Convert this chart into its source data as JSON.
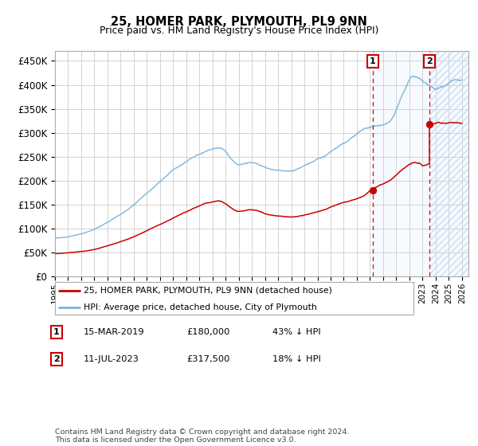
{
  "title": "25, HOMER PARK, PLYMOUTH, PL9 9NN",
  "subtitle": "Price paid vs. HM Land Registry's House Price Index (HPI)",
  "ylabel_ticks": [
    "£0",
    "£50K",
    "£100K",
    "£150K",
    "£200K",
    "£250K",
    "£300K",
    "£350K",
    "£400K",
    "£450K"
  ],
  "ytick_values": [
    0,
    50000,
    100000,
    150000,
    200000,
    250000,
    300000,
    350000,
    400000,
    450000
  ],
  "ylim": [
    0,
    470000
  ],
  "xlim_start": 1995.0,
  "xlim_end": 2026.5,
  "hpi_color": "#7ab4d8",
  "price_color": "#cc0000",
  "background_color": "#ffffff",
  "grid_color": "#cccccc",
  "shaded_region_color": "#ddeeff",
  "point1_date_num": 2019.2,
  "point1_price": 180000,
  "point2_date_num": 2023.53,
  "point2_price": 317500,
  "legend_line1": "25, HOMER PARK, PLYMOUTH, PL9 9NN (detached house)",
  "legend_line2": "HPI: Average price, detached house, City of Plymouth",
  "note1_label": "1",
  "note1_date": "15-MAR-2019",
  "note1_price": "£180,000",
  "note1_pct": "43% ↓ HPI",
  "note2_label": "2",
  "note2_date": "11-JUL-2023",
  "note2_price": "£317,500",
  "note2_pct": "18% ↓ HPI",
  "footer": "Contains HM Land Registry data © Crown copyright and database right 2024.\nThis data is licensed under the Open Government Licence v3.0.",
  "xtick_years": [
    1995,
    1996,
    1997,
    1998,
    1999,
    2000,
    2001,
    2002,
    2003,
    2004,
    2005,
    2006,
    2007,
    2008,
    2009,
    2010,
    2011,
    2012,
    2013,
    2014,
    2015,
    2016,
    2017,
    2018,
    2019,
    2020,
    2021,
    2022,
    2023,
    2024,
    2025,
    2026
  ]
}
